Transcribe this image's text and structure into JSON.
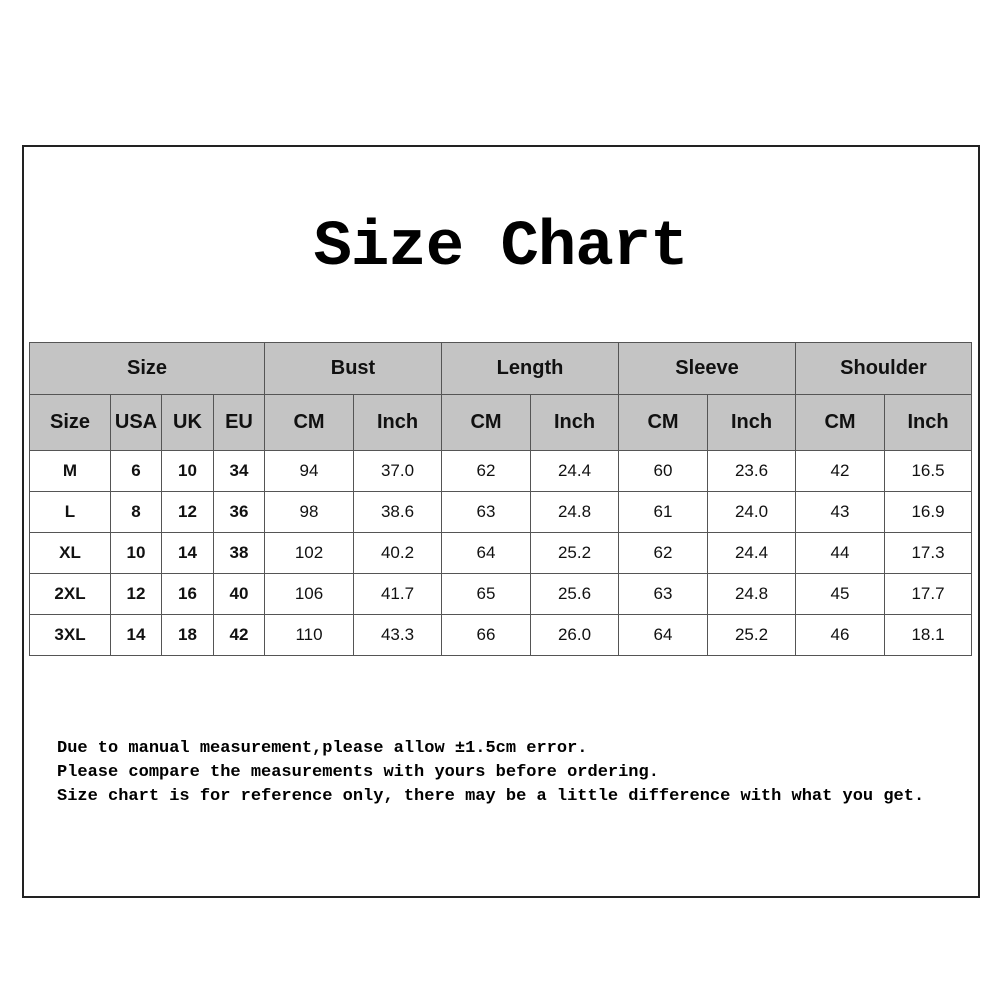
{
  "title": "Size Chart",
  "groups": [
    "Size",
    "Bust",
    "Length",
    "Sleeve",
    "Shoulder"
  ],
  "subheaders": [
    "Size",
    "USA",
    "UK",
    "EU",
    "CM",
    "Inch",
    "CM",
    "Inch",
    "CM",
    "Inch",
    "CM",
    "Inch"
  ],
  "rows": [
    [
      "M",
      "6",
      "10",
      "34",
      "94",
      "37.0",
      "62",
      "24.4",
      "60",
      "23.6",
      "42",
      "16.5"
    ],
    [
      "L",
      "8",
      "12",
      "36",
      "98",
      "38.6",
      "63",
      "24.8",
      "61",
      "24.0",
      "43",
      "16.9"
    ],
    [
      "XL",
      "10",
      "14",
      "38",
      "102",
      "40.2",
      "64",
      "25.2",
      "62",
      "24.4",
      "44",
      "17.3"
    ],
    [
      "2XL",
      "12",
      "16",
      "40",
      "106",
      "41.7",
      "65",
      "25.6",
      "63",
      "24.8",
      "45",
      "17.7"
    ],
    [
      "3XL",
      "14",
      "18",
      "42",
      "110",
      "43.3",
      "66",
      "26.0",
      "64",
      "25.2",
      "46",
      "18.1"
    ]
  ],
  "notes": [
    "Due to manual measurement,please allow ±1.5cm error.",
    "Please compare the measurements with yours before ordering.",
    "Size chart is for reference only, there may be a little difference with what you get."
  ],
  "colors": {
    "header_bg": "#c4c4c4",
    "border": "#555555"
  }
}
